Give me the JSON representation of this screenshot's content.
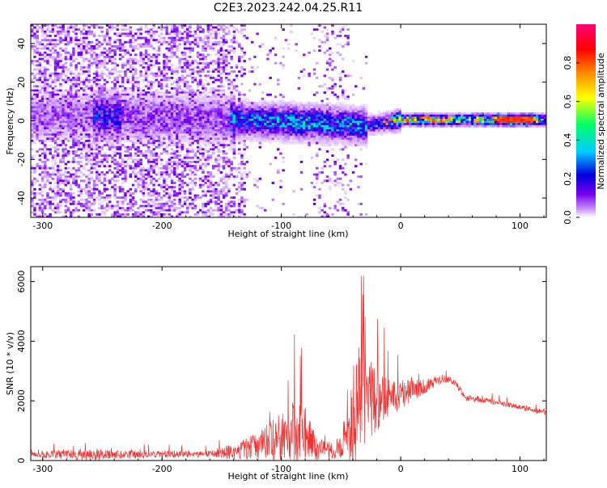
{
  "title": "C2E3.2023.242.04.25.R11",
  "colors": {
    "snr_line": "#ee3333",
    "axis": "#000000",
    "background": "#ffffff"
  },
  "chart_data": [
    {
      "type": "heatmap",
      "xlabel": "Height of straight line (km)",
      "ylabel": "Frequency (Hz)",
      "xlim": [
        -310,
        122
      ],
      "ylim": [
        -50,
        50
      ],
      "x_ticks": [
        -300,
        -200,
        -100,
        0,
        100
      ],
      "x_tick_labels": [
        "-300",
        "-200",
        "-100",
        "0",
        "100"
      ],
      "y_ticks": [
        -40,
        -20,
        0,
        20,
        40
      ],
      "y_tick_labels": [
        "-40",
        "-20",
        "0",
        "20",
        "40"
      ],
      "colorbar": {
        "label": "Normalized spectral amplitude",
        "range": [
          0,
          1
        ],
        "ticks": [
          0.0,
          0.2,
          0.4,
          0.6,
          0.8
        ],
        "tick_labels": [
          "0.0",
          "0.2",
          "0.4",
          "0.6",
          "0.8"
        ],
        "colormap": [
          "#ffffff",
          "#cc99ff",
          "#7700ee",
          "#0000dd",
          "#00ccff",
          "#00ff66",
          "#ffff00",
          "#ff8800",
          "#ff0000",
          "#ff0077"
        ]
      },
      "ridge": [
        {
          "x": -310,
          "y": 3
        },
        {
          "x": -250,
          "y": 3
        },
        {
          "x": -140,
          "y": 1
        },
        {
          "x": -100,
          "y": 0
        },
        {
          "x": -60,
          "y": -1
        },
        {
          "x": -30,
          "y": -2
        },
        {
          "x": -10,
          "y": 0
        },
        {
          "x": 0,
          "y": 1
        },
        {
          "x": 50,
          "y": 1
        },
        {
          "x": 122,
          "y": 1
        }
      ]
    },
    {
      "type": "line",
      "xlabel": "Height of straight line (km)",
      "ylabel": "SNR (10 * v/v)",
      "xlim": [
        -310,
        122
      ],
      "ylim": [
        0,
        6500
      ],
      "x_ticks": [
        -300,
        -200,
        -100,
        0,
        100
      ],
      "x_tick_labels": [
        "-300",
        "-200",
        "-100",
        "0",
        "100"
      ],
      "y_ticks": [
        0,
        2000,
        4000,
        6000
      ],
      "y_tick_labels": [
        "0",
        "2000",
        "4000",
        "6000"
      ],
      "envelope": [
        {
          "x": -310,
          "base": 200,
          "amp": 150
        },
        {
          "x": -260,
          "base": 200,
          "amp": 400
        },
        {
          "x": -240,
          "base": 200,
          "amp": 250
        },
        {
          "x": -160,
          "base": 220,
          "amp": 200
        },
        {
          "x": -140,
          "base": 300,
          "amp": 500
        },
        {
          "x": -120,
          "base": 500,
          "amp": 800
        },
        {
          "x": -100,
          "base": 800,
          "amp": 1500
        },
        {
          "x": -90,
          "base": 1000,
          "amp": 2000
        },
        {
          "x": -80,
          "base": 900,
          "amp": 1500
        },
        {
          "x": -70,
          "base": 400,
          "amp": 700
        },
        {
          "x": -55,
          "base": 300,
          "amp": 500
        },
        {
          "x": -45,
          "base": 800,
          "amp": 1500
        },
        {
          "x": -38,
          "base": 1500,
          "amp": 3000
        },
        {
          "x": -32,
          "base": 2500,
          "amp": 3800
        },
        {
          "x": -25,
          "base": 2000,
          "amp": 2500
        },
        {
          "x": -15,
          "base": 2000,
          "amp": 1500
        },
        {
          "x": 0,
          "base": 2200,
          "amp": 900
        },
        {
          "x": 20,
          "base": 2500,
          "amp": 500
        },
        {
          "x": 35,
          "base": 2750,
          "amp": 250
        },
        {
          "x": 45,
          "base": 2650,
          "amp": 200
        },
        {
          "x": 55,
          "base": 2100,
          "amp": 200
        },
        {
          "x": 80,
          "base": 1950,
          "amp": 180
        },
        {
          "x": 122,
          "base": 1600,
          "amp": 150
        }
      ]
    }
  ]
}
